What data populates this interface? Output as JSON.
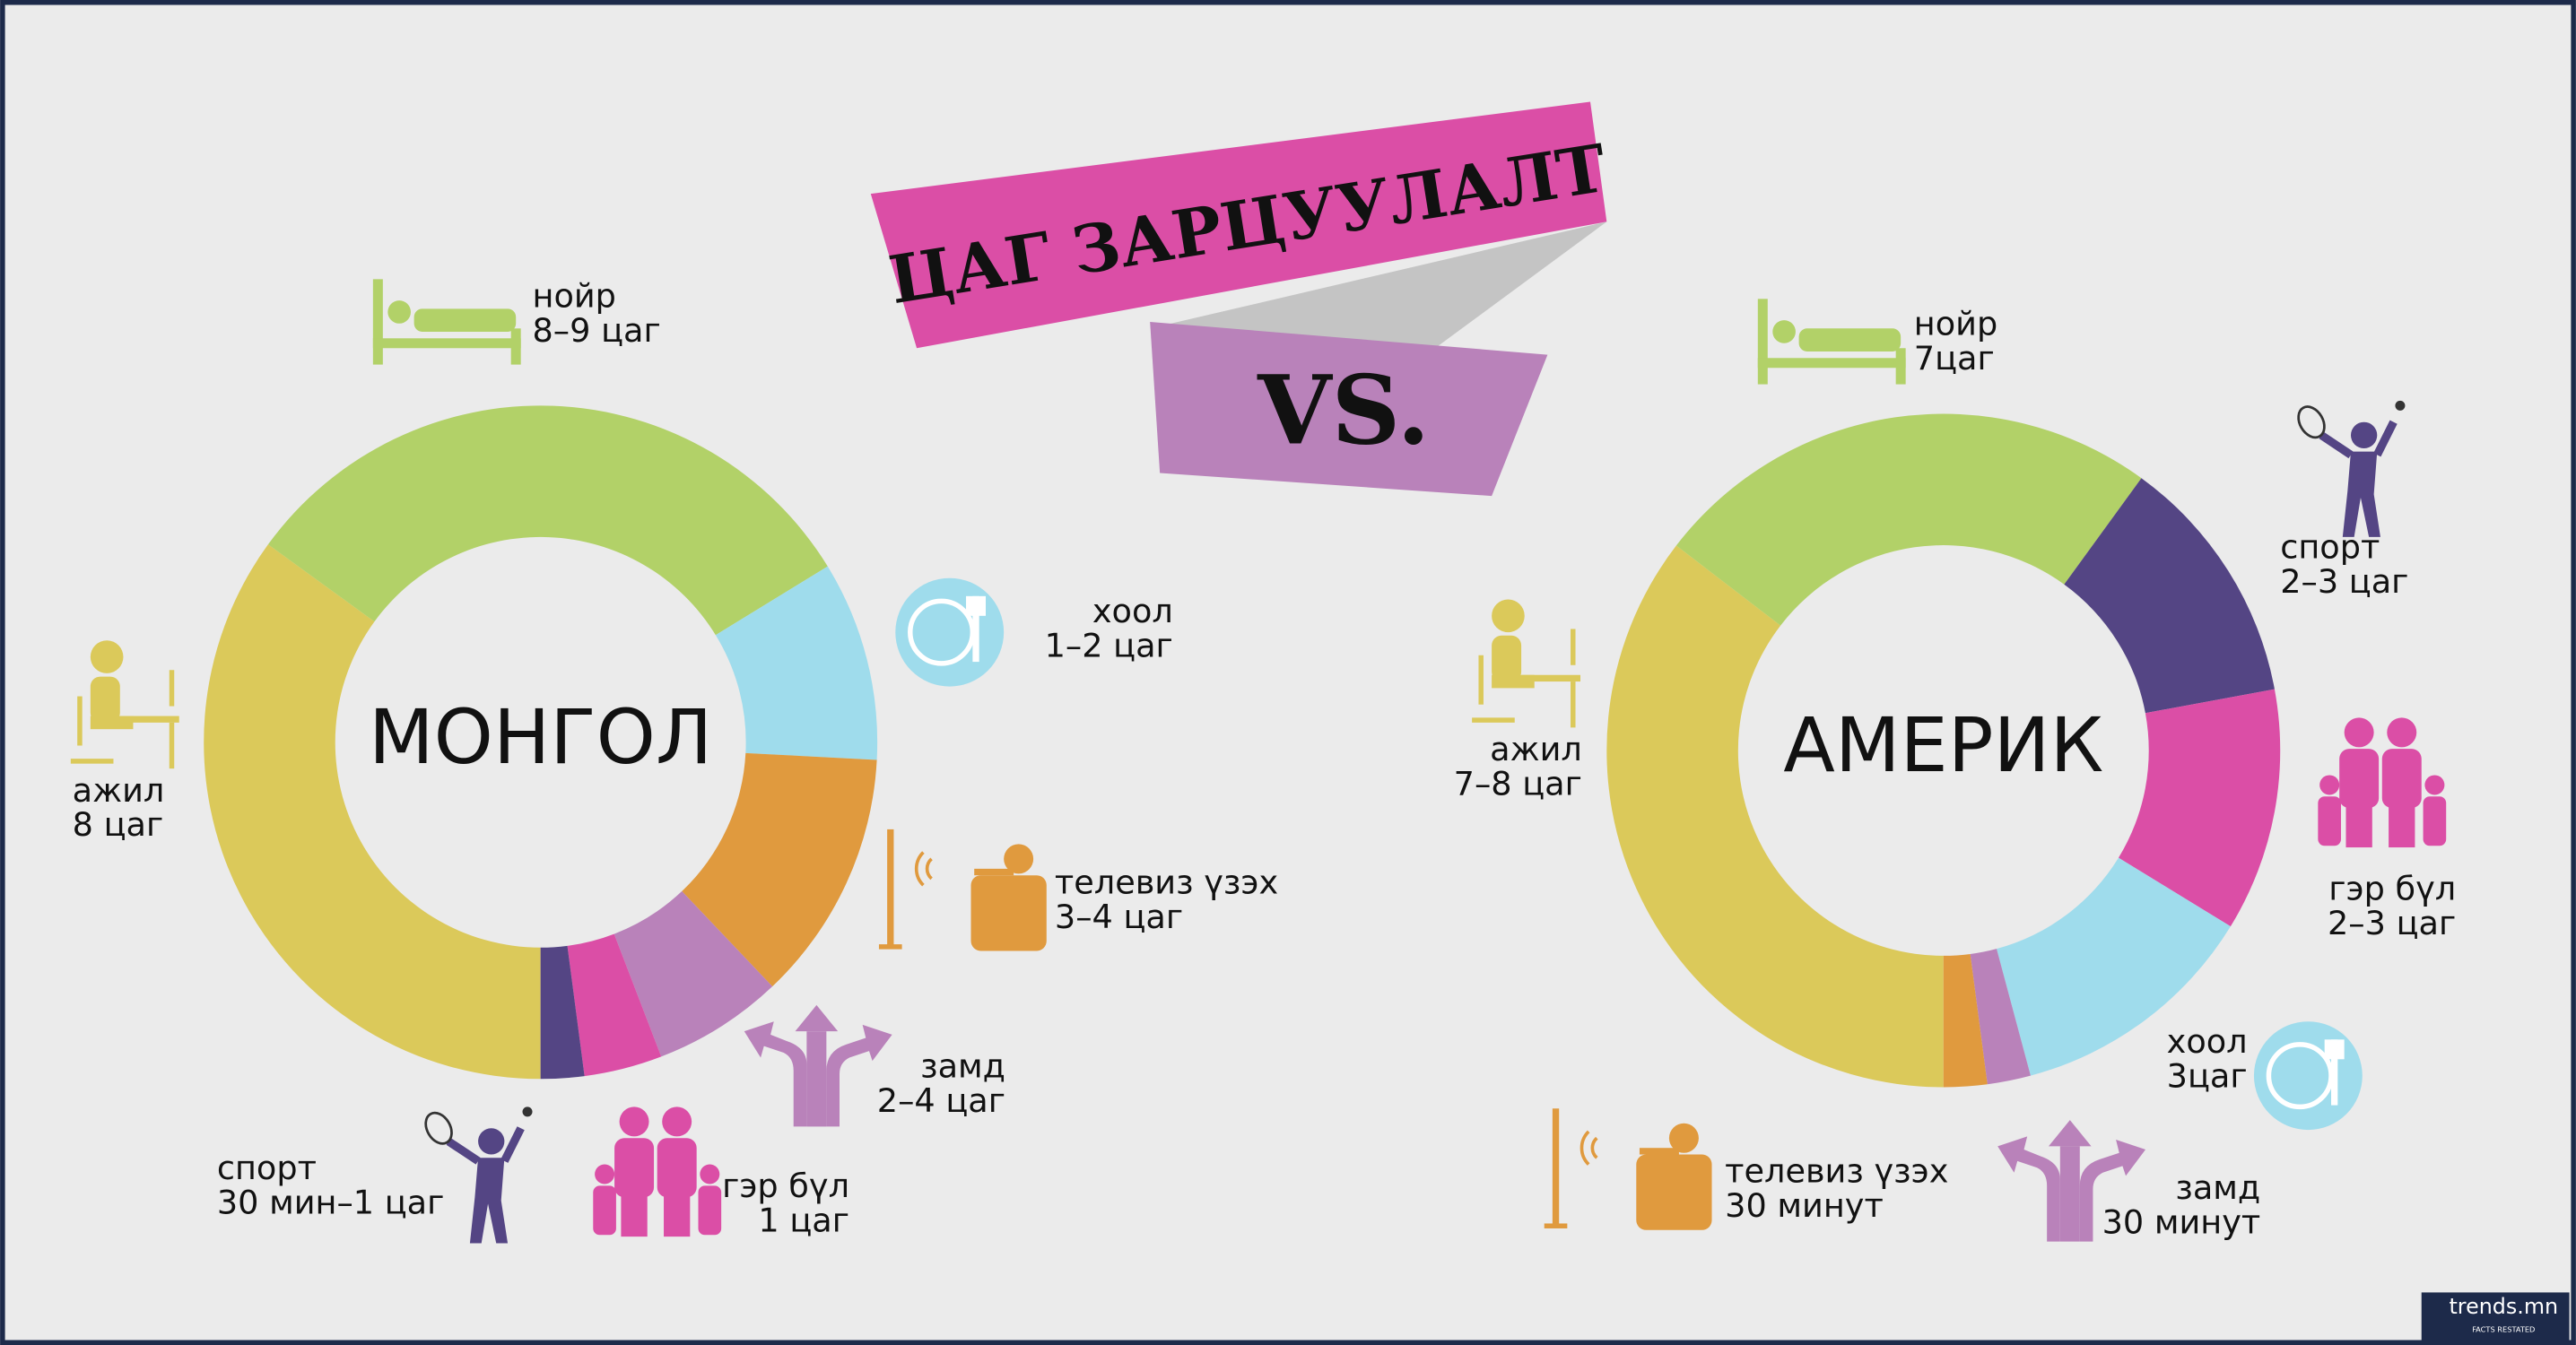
{
  "title": "ЦАГ ЗАРЦУУЛАЛТ",
  "versus": "VS.",
  "logo": "trends.mn",
  "logo_tagline": "FACTS RESTATED",
  "chart_data": [
    {
      "type": "pie",
      "donut": true,
      "title": "МОНГОЛ",
      "categories": [
        "ажил",
        "нойр",
        "хоол",
        "телевиз үзэх",
        "замд",
        "гэр бүл",
        "спорт"
      ],
      "durations": [
        "8 цаг",
        "8–9 цаг",
        "1–2 цаг",
        "3–4 цаг",
        "2–4 цаг",
        "1 цаг",
        "30 мин–1 цаг"
      ],
      "values": [
        8.4,
        7.5,
        2.3,
        2.9,
        1.5,
        0.9,
        0.5
      ],
      "colors": [
        "#dbc95a",
        "#b2d168",
        "#9fdcec",
        "#e09a3e",
        "#b982ba",
        "#db4ea6",
        "#544584"
      ]
    },
    {
      "type": "pie",
      "donut": true,
      "title": "АМЕРИК",
      "categories": [
        "ажил",
        "нойр",
        "спорт",
        "гэр бүл",
        "хоол",
        "замд",
        "телевиз үзэх"
      ],
      "durations": [
        "7–8 цаг",
        "7цаг",
        "2–3 цаг",
        "2–3 цаг",
        "3цаг",
        "30 минут",
        "30 минут"
      ],
      "values": [
        8.5,
        5.9,
        2.9,
        2.8,
        2.9,
        0.5,
        0.5
      ],
      "colors": [
        "#dbc95a",
        "#b2d168",
        "#544584",
        "#db4ea6",
        "#9fdcec",
        "#b982ba",
        "#e09a3e"
      ]
    }
  ]
}
